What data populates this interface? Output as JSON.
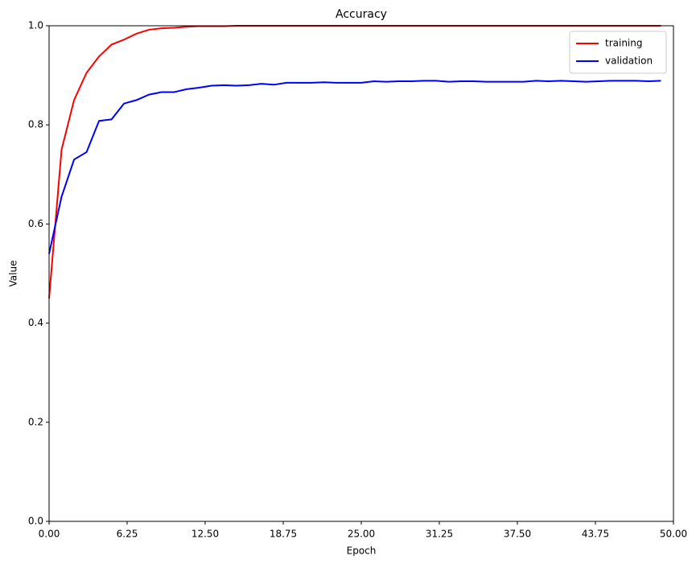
{
  "chart_data": {
    "type": "line",
    "title": "Accuracy",
    "xlabel": "Epoch",
    "ylabel": "Value",
    "x": [
      0,
      1,
      2,
      3,
      4,
      5,
      6,
      7,
      8,
      9,
      10,
      11,
      12,
      13,
      14,
      15,
      16,
      17,
      18,
      19,
      20,
      21,
      22,
      23,
      24,
      25,
      26,
      27,
      28,
      29,
      30,
      31,
      32,
      33,
      34,
      35,
      36,
      37,
      38,
      39,
      40,
      41,
      42,
      43,
      44,
      45,
      46,
      47,
      48,
      49
    ],
    "series": [
      {
        "name": "training",
        "color": "#ff0000",
        "values": [
          0.45,
          0.75,
          0.85,
          0.905,
          0.938,
          0.962,
          0.972,
          0.984,
          0.992,
          0.995,
          0.996,
          0.998,
          0.999,
          0.999,
          0.999,
          1.0,
          1.0,
          1.0,
          1.0,
          1.0,
          1.0,
          1.0,
          1.0,
          1.0,
          1.0,
          1.0,
          1.0,
          1.0,
          1.0,
          1.0,
          1.0,
          1.0,
          1.0,
          1.0,
          1.0,
          1.0,
          1.0,
          1.0,
          1.0,
          1.0,
          1.0,
          1.0,
          1.0,
          1.0,
          1.0,
          1.0,
          1.0,
          1.0,
          1.0,
          1.0
        ]
      },
      {
        "name": "validation",
        "color": "#0000ff",
        "values": [
          0.54,
          0.655,
          0.73,
          0.745,
          0.808,
          0.811,
          0.843,
          0.85,
          0.861,
          0.866,
          0.866,
          0.872,
          0.875,
          0.879,
          0.88,
          0.879,
          0.88,
          0.883,
          0.881,
          0.885,
          0.885,
          0.885,
          0.886,
          0.885,
          0.885,
          0.885,
          0.888,
          0.887,
          0.888,
          0.888,
          0.889,
          0.889,
          0.887,
          0.888,
          0.888,
          0.887,
          0.887,
          0.887,
          0.887,
          0.889,
          0.888,
          0.889,
          0.888,
          0.887,
          0.888,
          0.889,
          0.889,
          0.889,
          0.888,
          0.889
        ]
      }
    ],
    "xlim": [
      0,
      50
    ],
    "xticks": [
      {
        "value": 0,
        "label": "0.00"
      },
      {
        "value": 6.25,
        "label": "6.25"
      },
      {
        "value": 12.5,
        "label": "12.50"
      },
      {
        "value": 18.75,
        "label": "18.75"
      },
      {
        "value": 25,
        "label": "25.00"
      },
      {
        "value": 31.25,
        "label": "31.25"
      },
      {
        "value": 37.5,
        "label": "37.50"
      },
      {
        "value": 43.75,
        "label": "43.75"
      },
      {
        "value": 50,
        "label": "50.00"
      }
    ],
    "ylim": [
      0,
      1
    ],
    "yticks": [
      {
        "value": 0,
        "label": "0.0"
      },
      0.2,
      0.4,
      0.6,
      0.8,
      {
        "value": 1,
        "label": "1.0"
      }
    ],
    "legend": "upper right"
  }
}
